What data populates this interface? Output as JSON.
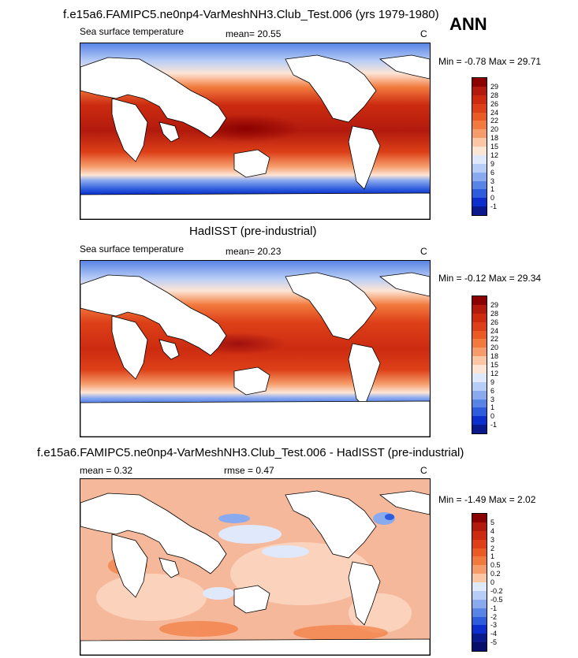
{
  "header": {
    "season": "ANN"
  },
  "panels": [
    {
      "title": "f.e15a6.FAMIPC5.ne0np4-VarMeshNH3.Club_Test.006 (yrs 1979-1980)",
      "field": "Sea surface temperature",
      "stat1": "mean=  20.55",
      "stat2": "",
      "units": "C",
      "minmax": "Min =  -0.78 Max =  29.71",
      "colorbar_labels": [
        "29",
        "28",
        "26",
        "24",
        "22",
        "20",
        "18",
        "15",
        "12",
        "9",
        "6",
        "3",
        "1",
        "0",
        "-1"
      ],
      "colorbar_colors": [
        "#8b0000",
        "#b21a0d",
        "#cc2b10",
        "#dd4018",
        "#ea5a24",
        "#f27a3e",
        "#f69c6a",
        "#fbc6a4",
        "#fde5d5",
        "#dfe9fb",
        "#b8cdf6",
        "#8aaaf0",
        "#5884e6",
        "#2d5cdc",
        "#0c2ecc",
        "#0a1a8c"
      ]
    },
    {
      "title": "HadISST (pre-industrial)",
      "field": "Sea surface temperature",
      "stat1": "mean=  20.23",
      "stat2": "",
      "units": "C",
      "minmax": "Min =  -0.12 Max =  29.34",
      "colorbar_labels": [
        "29",
        "28",
        "26",
        "24",
        "22",
        "20",
        "18",
        "15",
        "12",
        "9",
        "6",
        "3",
        "1",
        "0",
        "-1"
      ],
      "colorbar_colors": [
        "#8b0000",
        "#b21a0d",
        "#cc2b10",
        "#dd4018",
        "#ea5a24",
        "#f27a3e",
        "#f69c6a",
        "#fbc6a4",
        "#fde5d5",
        "#dfe9fb",
        "#b8cdf6",
        "#8aaaf0",
        "#5884e6",
        "#2d5cdc",
        "#0c2ecc",
        "#0a1a8c"
      ]
    },
    {
      "title": "f.e15a6.FAMIPC5.ne0np4-VarMeshNH3.Club_Test.006 - HadISST (pre-industrial)",
      "field": "",
      "stat1": "mean =   0.32",
      "stat2": "rmse =   0.47",
      "units": "C",
      "minmax": "Min =  -1.49 Max =   2.02",
      "colorbar_labels": [
        "5",
        "4",
        "3",
        "2",
        "1",
        "0.5",
        "0.2",
        "0",
        "-0.2",
        "-0.5",
        "-1",
        "-2",
        "-3",
        "-4",
        "-5"
      ],
      "colorbar_colors": [
        "#8b0000",
        "#b21a0d",
        "#cc2b10",
        "#dd4018",
        "#ea5a24",
        "#f27a3e",
        "#f69c6a",
        "#fbc6a4",
        "#dfe9fb",
        "#b8cdf6",
        "#8aaaf0",
        "#5884e6",
        "#2d5cdc",
        "#0c2ecc",
        "#0a1a8c",
        "#070d6b"
      ]
    }
  ]
}
